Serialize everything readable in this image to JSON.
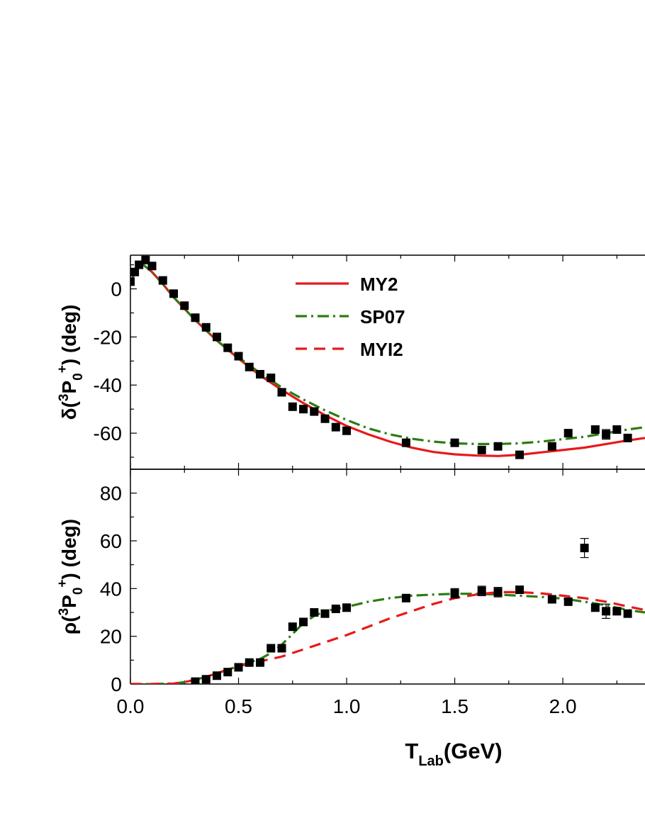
{
  "chart_data": [
    {
      "type": "line",
      "panel": "top",
      "ylabel": {
        "pre": "δ(",
        "sup1": "3",
        "main": "P",
        "sub": "0",
        "sup2": "+",
        "post": ")  (deg)"
      },
      "xlim": [
        0,
        2.38
      ],
      "ylim": [
        -75,
        14
      ],
      "yticks": [
        0,
        -20,
        -40,
        -60
      ],
      "legend": {
        "placement": "top-center",
        "entries": [
          "MY2",
          "SP07",
          "MYI2"
        ]
      },
      "series": [
        {
          "name": "MY2",
          "style": "solid",
          "color": "#e8191b",
          "x": [
            0.0,
            0.02,
            0.04,
            0.06,
            0.1,
            0.15,
            0.2,
            0.3,
            0.4,
            0.5,
            0.6,
            0.7,
            0.8,
            0.9,
            1.0,
            1.1,
            1.2,
            1.3,
            1.4,
            1.5,
            1.6,
            1.7,
            1.8,
            1.9,
            2.0,
            2.1,
            2.2,
            2.3,
            2.38
          ],
          "values": [
            2,
            7,
            9.5,
            10,
            7,
            2,
            -3.5,
            -13,
            -21.5,
            -29,
            -36,
            -42,
            -47.5,
            -52.5,
            -57,
            -60.5,
            -63.5,
            -66,
            -67.8,
            -68.8,
            -69.3,
            -69.5,
            -69,
            -68,
            -67,
            -66,
            -64.5,
            -63,
            -62
          ]
        },
        {
          "name": "SP07",
          "style": "dash-dot",
          "color": "#2a7d12",
          "x": [
            0.0,
            0.02,
            0.04,
            0.06,
            0.1,
            0.15,
            0.2,
            0.3,
            0.4,
            0.5,
            0.6,
            0.7,
            0.8,
            0.9,
            1.0,
            1.1,
            1.2,
            1.3,
            1.4,
            1.5,
            1.6,
            1.7,
            1.8,
            1.9,
            2.0,
            2.1,
            2.2,
            2.3,
            2.38
          ],
          "values": [
            2,
            7,
            9.5,
            10,
            7,
            2,
            -3.5,
            -13,
            -21.5,
            -28.5,
            -35,
            -41,
            -46,
            -50.5,
            -54.5,
            -58,
            -60.5,
            -62.3,
            -63.5,
            -64.2,
            -64.5,
            -64.5,
            -64.2,
            -63.5,
            -62.5,
            -61.5,
            -60,
            -58.5,
            -57.5
          ]
        }
      ],
      "points": {
        "x": [
          0.0,
          0.02,
          0.04,
          0.07,
          0.1,
          0.15,
          0.2,
          0.25,
          0.3,
          0.35,
          0.4,
          0.45,
          0.5,
          0.55,
          0.6,
          0.65,
          0.7,
          0.75,
          0.8,
          0.85,
          0.9,
          0.95,
          1.0,
          1.275,
          1.5,
          1.625,
          1.7,
          1.8,
          1.95,
          2.025,
          2.15,
          2.2,
          2.25,
          2.3
        ],
        "y": [
          3,
          7,
          10,
          12,
          9.5,
          3.5,
          -2,
          -7,
          -12,
          -16,
          -20,
          -24.5,
          -28,
          -32.5,
          -35.5,
          -37,
          -43,
          -49,
          -50,
          -51,
          -54,
          -57.5,
          -59,
          -64,
          -64,
          -67,
          -65.5,
          -69,
          -65.5,
          -60,
          -58.5,
          -60.5,
          -58.5,
          -62
        ],
        "err": [
          0,
          0,
          0,
          0,
          0,
          0,
          0,
          0,
          0,
          0,
          0,
          0,
          0,
          0,
          0,
          0,
          0,
          0,
          0,
          0,
          0,
          0,
          0,
          0,
          0,
          0,
          0,
          0,
          0,
          0,
          0,
          2,
          0,
          0
        ]
      }
    },
    {
      "type": "line",
      "panel": "bottom",
      "ylabel": {
        "pre": "ρ(",
        "sup1": "3",
        "main": "P",
        "sub": "0",
        "sup2": "+",
        "post": ")  (deg)"
      },
      "xlabel": {
        "main": "T",
        "sub": "Lab",
        "post": "(GeV)"
      },
      "xlim": [
        0,
        2.38
      ],
      "ylim": [
        0,
        90
      ],
      "yticks": [
        0,
        20,
        40,
        60,
        80
      ],
      "xticks": [
        0.0,
        0.5,
        1.0,
        1.5,
        2.0
      ],
      "xtick_labels": [
        "0.0",
        "0.5",
        "1.0",
        "1.5",
        "2.0"
      ],
      "series": [
        {
          "name": "SP07",
          "style": "dash-dot",
          "color": "#2a7d12",
          "x": [
            0.0,
            0.1,
            0.2,
            0.25,
            0.3,
            0.35,
            0.4,
            0.45,
            0.5,
            0.55,
            0.6,
            0.65,
            0.7,
            0.75,
            0.8,
            0.85,
            0.9,
            0.95,
            1.0,
            1.1,
            1.2,
            1.3,
            1.4,
            1.5,
            1.6,
            1.7,
            1.8,
            1.9,
            2.0,
            2.1,
            2.2,
            2.3,
            2.38
          ],
          "values": [
            0,
            0,
            0.2,
            0.8,
            1.8,
            3,
            4.5,
            6,
            7.5,
            9,
            10.5,
            13,
            16.5,
            21,
            25.5,
            28.5,
            30.5,
            31.5,
            32.3,
            34.5,
            36,
            37,
            37.5,
            37.8,
            37.8,
            37.5,
            37,
            36.5,
            35.8,
            34.5,
            33,
            31,
            30
          ]
        },
        {
          "name": "MYI2",
          "style": "dashed",
          "color": "#e8191b",
          "x": [
            0.0,
            0.1,
            0.2,
            0.25,
            0.3,
            0.35,
            0.4,
            0.45,
            0.5,
            0.55,
            0.6,
            0.7,
            0.8,
            0.9,
            1.0,
            1.1,
            1.2,
            1.3,
            1.4,
            1.5,
            1.6,
            1.7,
            1.8,
            1.9,
            2.0,
            2.1,
            2.2,
            2.3,
            2.38
          ],
          "values": [
            0,
            0,
            0.2,
            0.8,
            1.8,
            3,
            4.5,
            6,
            7.5,
            8.5,
            9.5,
            11.5,
            14.5,
            17.5,
            20.5,
            24,
            27.5,
            30.5,
            33.5,
            36,
            37.5,
            38.5,
            38.5,
            38,
            37,
            36,
            34.5,
            32.5,
            31
          ]
        }
      ],
      "points": {
        "x": [
          0.3,
          0.35,
          0.4,
          0.45,
          0.5,
          0.55,
          0.6,
          0.65,
          0.7,
          0.75,
          0.8,
          0.85,
          0.9,
          0.95,
          1.0,
          1.275,
          1.5,
          1.625,
          1.7,
          1.8,
          1.95,
          2.025,
          2.1,
          2.15,
          2.2,
          2.25,
          2.3
        ],
        "y": [
          1,
          2,
          3.5,
          5,
          7,
          9,
          9,
          15,
          15,
          24,
          26,
          30,
          29.5,
          31.5,
          32,
          36,
          38,
          39,
          38.5,
          39.5,
          35.5,
          34.5,
          57,
          32,
          30.5,
          30.5,
          29.5
        ],
        "err": [
          0,
          0,
          0,
          0,
          0,
          0,
          0,
          0,
          0,
          0,
          0,
          0,
          0,
          0,
          0,
          1.5,
          2,
          2,
          2,
          0,
          0,
          0,
          4,
          0,
          3,
          0,
          0
        ]
      }
    }
  ]
}
